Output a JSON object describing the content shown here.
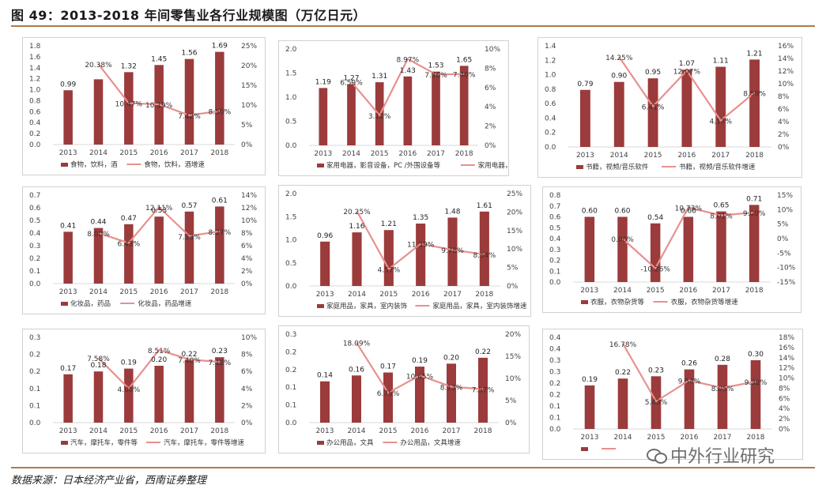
{
  "figure_title": "图 49：2013-2018 年间零售业各行业规模图（万亿日元）",
  "source_note": "数据来源：日本经济产业省，西南证券整理",
  "watermark_text": "中外行业研究",
  "colors": {
    "bar": "#9b3b3b",
    "line": "#e8908e",
    "rule": "#b07a4a",
    "axis": "#d9d9d9"
  },
  "chart_data": [
    {
      "type": "bar+line",
      "categories": [
        "2013",
        "2014",
        "2015",
        "2016",
        "2017",
        "2018"
      ],
      "series": [
        {
          "name": "食物，饮料，酒",
          "kind": "bar",
          "axis": "left",
          "values": [
            0.99,
            1.19,
            1.32,
            1.45,
            1.56,
            1.69
          ],
          "labels": [
            "0.99",
            "",
            "1.32",
            "1.45",
            "1.56",
            "1.69"
          ]
        },
        {
          "name": "食物，饮料，酒增速",
          "kind": "line",
          "axis": "right",
          "values": [
            null,
            20.38,
            10.47,
            10.19,
            7.42,
            8.5
          ],
          "labels": [
            "",
            "20.38%",
            "10.47%",
            "10.19%",
            "7.42%",
            "8.50%"
          ]
        }
      ],
      "left_ticks": [
        "1.8",
        "1.6",
        "1.4",
        "1.2",
        "1.0",
        "0.8",
        "0.6",
        "0.4",
        "0.2",
        "0.0"
      ],
      "left_range": [
        0,
        1.8
      ],
      "right_ticks": [
        "25%",
        "20%",
        "15%",
        "10%",
        "5%",
        "0%"
      ],
      "right_range": [
        0,
        25
      ]
    },
    {
      "type": "bar+line",
      "categories": [
        "2013",
        "2014",
        "2015",
        "2016",
        "2017",
        "2018"
      ],
      "series": [
        {
          "name": "家用电器，影音设备，PC /外围设备等",
          "kind": "bar",
          "axis": "left",
          "values": [
            1.19,
            1.27,
            1.31,
            1.43,
            1.53,
            1.65
          ],
          "labels": [
            "1.19",
            "1.27",
            "1.31",
            "1.43",
            "1.53",
            "1.65"
          ]
        },
        {
          "name": "家用电器，影音设备，PC /外围设备等增速",
          "kind": "line",
          "axis": "right",
          "values": [
            null,
            6.59,
            3.12,
            8.97,
            7.36,
            7.4
          ],
          "labels": [
            "",
            "6.59%",
            "3.12%",
            "8.97%",
            "7.36%",
            "7.40%"
          ]
        }
      ],
      "left_ticks": [
        "2.0",
        "1.5",
        "1.0",
        "0.5",
        "0.0"
      ],
      "left_range": [
        0,
        2.0
      ],
      "right_ticks": [
        "10%",
        "8%",
        "6%",
        "4%",
        "2%",
        "0%"
      ],
      "right_range": [
        0,
        10
      ]
    },
    {
      "type": "bar+line",
      "categories": [
        "2013",
        "2014",
        "2015",
        "2016",
        "2017",
        "2018"
      ],
      "series": [
        {
          "name": "书籍，视频/音乐软件",
          "kind": "bar",
          "axis": "left",
          "values": [
            0.79,
            0.9,
            0.95,
            1.07,
            1.11,
            1.21
          ],
          "labels": [
            "0.79",
            "0.90",
            "0.95",
            "1.07",
            "1.11",
            "1.21"
          ]
        },
        {
          "name": "书籍，视频/音乐软件增速",
          "kind": "line",
          "axis": "right",
          "values": [
            null,
            14.25,
            6.41,
            12.07,
            4.17,
            8.59
          ],
          "labels": [
            "",
            "14.25%",
            "6.41%",
            "12.07%",
            "4.17%",
            "8.59%"
          ]
        }
      ],
      "left_ticks": [
        "1.4",
        "1.2",
        "1.0",
        "0.8",
        "0.6",
        "0.4",
        "0.2",
        "0.0"
      ],
      "left_range": [
        0,
        1.4
      ],
      "right_ticks": [
        "16%",
        "14%",
        "12%",
        "10%",
        "8%",
        "6%",
        "4%",
        "2%",
        "0%"
      ],
      "right_range": [
        0,
        16
      ]
    },
    {
      "type": "bar+line",
      "categories": [
        "2013",
        "2014",
        "2015",
        "2016",
        "2017",
        "2018"
      ],
      "series": [
        {
          "name": "化妆品，药品",
          "kind": "bar",
          "axis": "left",
          "values": [
            0.41,
            0.44,
            0.47,
            0.53,
            0.57,
            0.61
          ],
          "labels": [
            "0.41",
            "0.44",
            "0.47",
            "0.53",
            "0.57",
            "0.61"
          ]
        },
        {
          "name": "化妆品，药品增速",
          "kind": "line",
          "axis": "right",
          "values": [
            null,
            8.0,
            6.43,
            12.11,
            7.53,
            8.27
          ],
          "labels": [
            "",
            "8.00%",
            "6.43%",
            "12.11%",
            "7.53%",
            "8.27%"
          ]
        }
      ],
      "left_ticks": [
        "0.7",
        "0.6",
        "0.5",
        "0.4",
        "0.3",
        "0.2",
        "0.1",
        "0.0"
      ],
      "left_range": [
        0,
        0.7
      ],
      "right_ticks": [
        "14%",
        "12%",
        "10%",
        "8%",
        "6%",
        "4%",
        "2%",
        "0%"
      ],
      "right_range": [
        0,
        14
      ]
    },
    {
      "type": "bar+line",
      "categories": [
        "2013",
        "2014",
        "2015",
        "2016",
        "2017",
        "2018"
      ],
      "series": [
        {
          "name": "家庭用品，家具，室内装饰",
          "kind": "bar",
          "axis": "left",
          "values": [
            0.96,
            1.16,
            1.21,
            1.35,
            1.48,
            1.61
          ],
          "labels": [
            "0.96",
            "1.16",
            "1.21",
            "1.35",
            "1.48",
            "1.61"
          ]
        },
        {
          "name": "家庭用品，家具，室内装饰增速",
          "kind": "line",
          "axis": "right",
          "values": [
            null,
            20.25,
            4.57,
            11.39,
            9.78,
            8.54
          ],
          "labels": [
            "",
            "20.25%",
            "4.57%",
            "11.39%",
            "9.78%",
            "8.54%"
          ]
        }
      ],
      "left_ticks": [
        "2.0",
        "1.5",
        "1.0",
        "0.5",
        "0.0"
      ],
      "left_range": [
        0,
        2.0
      ],
      "right_ticks": [
        "25%",
        "20%",
        "15%",
        "10%",
        "5%",
        "0%"
      ],
      "right_range": [
        0,
        25
      ]
    },
    {
      "type": "bar+line",
      "categories": [
        "2013",
        "2014",
        "2015",
        "2016",
        "2017",
        "2018"
      ],
      "series": [
        {
          "name": "衣服，衣物杂货等",
          "kind": "bar",
          "axis": "left",
          "values": [
            0.6,
            0.6,
            0.54,
            0.6,
            0.65,
            0.71
          ],
          "labels": [
            "0.60",
            "0.60",
            "0.54",
            "0.60",
            "0.65",
            "0.71"
          ]
        },
        {
          "name": "衣服，衣物杂货等增速",
          "kind": "line",
          "axis": "right",
          "values": [
            null,
            0.0,
            -10.26,
            10.73,
            8.01,
            9.0
          ],
          "labels": [
            "",
            "0.00%",
            "-10.26%",
            "10.73%",
            "8.01%",
            "9.00%"
          ]
        }
      ],
      "left_ticks": [
        "0.8",
        "0.7",
        "0.6",
        "0.5",
        "0.4",
        "0.3",
        "0.2",
        "0.1",
        "0.0"
      ],
      "left_range": [
        0,
        0.8
      ],
      "right_ticks": [
        "15%",
        "10%",
        "5%",
        "0%",
        "-5%",
        "-10%",
        "-15%"
      ],
      "right_range": [
        -15,
        15
      ]
    },
    {
      "type": "bar+line",
      "categories": [
        "2013",
        "2014",
        "2015",
        "2016",
        "2017",
        "2018"
      ],
      "series": [
        {
          "name": "汽车，摩托车，零件等",
          "kind": "bar",
          "axis": "left",
          "values": [
            0.17,
            0.18,
            0.19,
            0.2,
            0.22,
            0.23
          ],
          "labels": [
            "0.17",
            "0.18",
            "0.19",
            "0.20",
            "0.22",
            "0.23"
          ]
        },
        {
          "name": "汽车，摩托车，零件等增速",
          "kind": "line",
          "axis": "right",
          "values": [
            null,
            7.58,
            4.0,
            8.51,
            7.4,
            7.12
          ],
          "labels": [
            "",
            "7.58%",
            "4.00%",
            "8.51%",
            "7.40%",
            "7.12%"
          ]
        }
      ],
      "left_ticks": [
        "0.3",
        "0.2",
        "0.2",
        "0.1",
        "0.1",
        "0.0"
      ],
      "left_range": [
        0,
        0.3
      ],
      "right_ticks": [
        "10%",
        "8%",
        "6%",
        "4%",
        "2%",
        "0%"
      ],
      "right_range": [
        0,
        10
      ]
    },
    {
      "type": "bar+line",
      "categories": [
        "2013",
        "2014",
        "2015",
        "2016",
        "2017",
        "2018"
      ],
      "series": [
        {
          "name": "办公用品，文具",
          "kind": "bar",
          "axis": "left",
          "values": [
            0.14,
            0.16,
            0.17,
            0.19,
            0.2,
            0.22
          ],
          "labels": [
            "0.14",
            "0.16",
            "0.17",
            "0.19",
            "0.20",
            "0.22"
          ]
        },
        {
          "name": "办公用品，文具增速",
          "kind": "line",
          "axis": "right",
          "values": [
            null,
            18.09,
            6.75,
            10.65,
            8.13,
            7.57
          ],
          "labels": [
            "",
            "18.09%",
            "6.75%",
            "10.65%",
            "8.13%",
            "7.57%"
          ]
        }
      ],
      "left_ticks": [
        "0.3",
        "0.2",
        "0.2",
        "0.1",
        "0.1",
        "0.0"
      ],
      "left_range": [
        0,
        0.3
      ],
      "right_ticks": [
        "20%",
        "15%",
        "10%",
        "5%",
        "0%"
      ],
      "right_range": [
        0,
        20
      ]
    },
    {
      "type": "bar+line",
      "categories": [
        "2013",
        "2014",
        "2015",
        "2016",
        "2017",
        "2018"
      ],
      "series": [
        {
          "name": "",
          "kind": "bar",
          "axis": "left",
          "values": [
            0.19,
            0.22,
            0.23,
            0.26,
            0.28,
            0.3
          ],
          "labels": [
            "0.19",
            "0.22",
            "0.23",
            "0.26",
            "0.28",
            "0.30"
          ]
        },
        {
          "name": "",
          "kind": "line",
          "axis": "right",
          "values": [
            null,
            16.78,
            5.43,
            9.54,
            8.05,
            9.32
          ],
          "labels": [
            "",
            "16.78%",
            "5.43%",
            "9.54%",
            "8.05%",
            "9.32%"
          ]
        }
      ],
      "left_ticks": [
        "0.4",
        "0.4",
        "0.3",
        "0.3",
        "0.2",
        "0.2",
        "0.1",
        "0.1",
        "0.0"
      ],
      "left_range": [
        0,
        0.4
      ],
      "right_ticks": [
        "18%",
        "16%",
        "14%",
        "12%",
        "10%",
        "8%",
        "6%",
        "4%",
        "2%",
        "0%"
      ],
      "right_range": [
        0,
        18
      ]
    }
  ]
}
